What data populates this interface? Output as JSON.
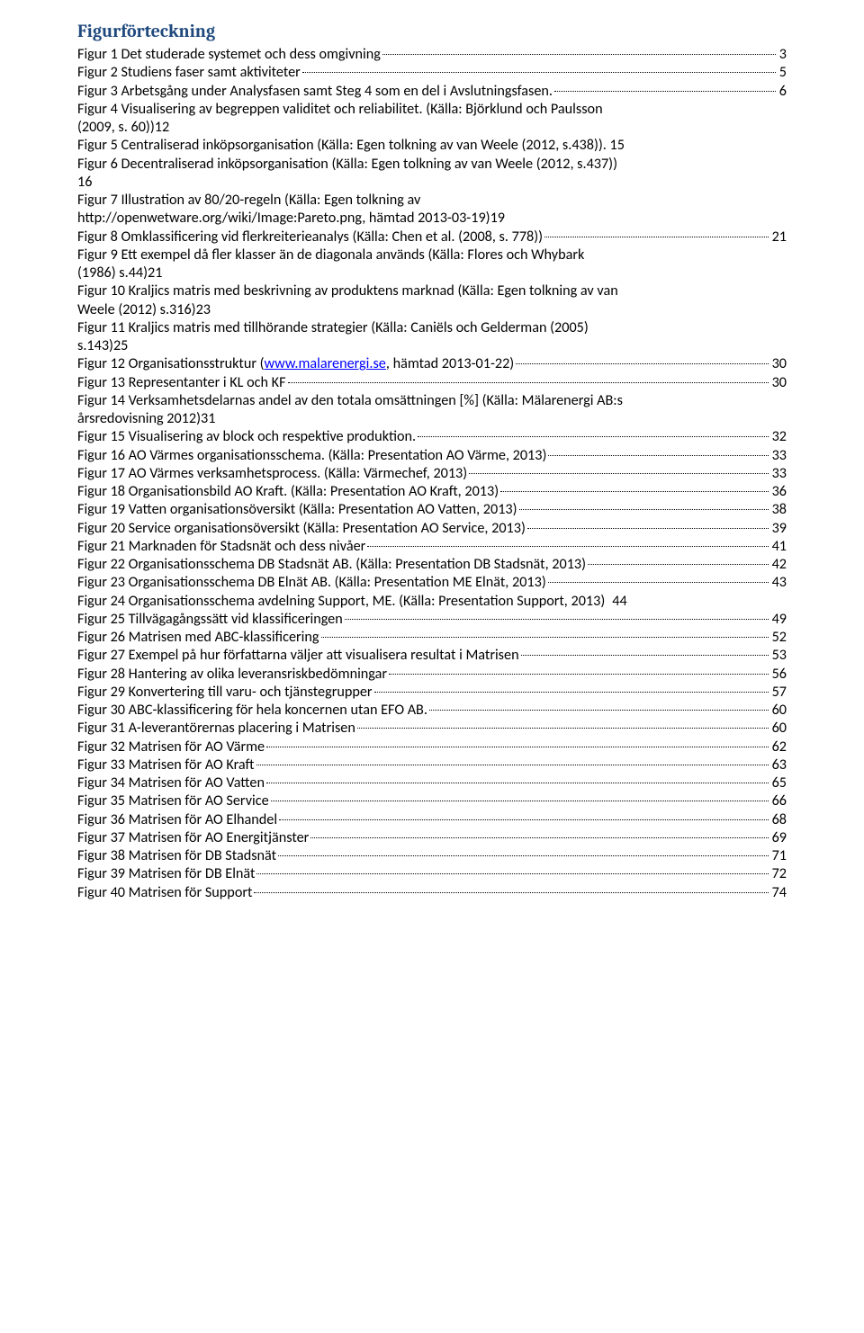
{
  "heading": "Figurförteckning",
  "colors": {
    "heading_color": "#1f497d",
    "text_color": "#000000",
    "link_color": "#0000ff",
    "background": "#ffffff",
    "leader_color": "#000000"
  },
  "typography": {
    "heading_font": "Cambria",
    "body_font": "Calibri",
    "heading_size_pt": 15,
    "body_size_pt": 12
  },
  "entries": [
    {
      "lines": [
        "Figur 1 Det studerade systemet och dess omgivning"
      ],
      "page": "3"
    },
    {
      "lines": [
        "Figur 2 Studiens faser samt aktiviteter"
      ],
      "page": "5"
    },
    {
      "lines": [
        "Figur 3 Arbetsgång under Analysfasen samt Steg 4 som en del i Avslutningsfasen."
      ],
      "page": "6"
    },
    {
      "lines": [
        "Figur 4 Visualisering av begreppen validitet och reliabilitet. (Källa: Björklund och Paulsson",
        "(2009, s. 60))"
      ],
      "page": "12"
    },
    {
      "lines": [
        "Figur 5 Centraliserad inköpsorganisation (Källa: Egen tolkning av van Weele (2012, s.438)). 15"
      ],
      "page": null
    },
    {
      "lines": [
        "Figur 6 Decentraliserad inköpsorganisation (Källa: Egen tolkning av van Weele (2012, s.437))",
        ""
      ],
      "page": "16"
    },
    {
      "lines": [
        "Figur 7 Illustration av 80/20-regeln (Källa: Egen tolkning av",
        "http://openwetware.org/wiki/Image:Pareto.png, hämtad 2013-03-19)"
      ],
      "page": "19"
    },
    {
      "lines": [
        "Figur 8 Omklassificering vid flerkreiterieanalys (Källa: Chen et al. (2008, s. 778))"
      ],
      "page": "21"
    },
    {
      "lines": [
        "Figur 9 Ett exempel då fler klasser än de diagonala används (Källa: Flores och Whybark",
        "(1986) s.44)"
      ],
      "page": "21"
    },
    {
      "lines": [
        "Figur 10 Kraljics matris med beskrivning av produktens marknad (Källa: Egen tolkning av van",
        "Weele (2012) s.316)"
      ],
      "page": "23"
    },
    {
      "lines": [
        "Figur 11 Kraljics matris med tillhörande strategier (Källa: Caniëls och Gelderman (2005)",
        "s.143)"
      ],
      "page": "25"
    },
    {
      "lines": [
        "Figur 12 Organisationsstruktur (",
        {
          "link": "www.malarenergi.se"
        },
        ", hämtad 2013-01-22)"
      ],
      "page": "30",
      "inline_link": true
    },
    {
      "lines": [
        "Figur 13 Representanter i KL och KF"
      ],
      "page": "30"
    },
    {
      "lines": [
        "Figur 14 Verksamhetsdelarnas andel av den totala omsättningen [%] (Källa: Mälarenergi AB:s",
        "årsredovisning 2012)"
      ],
      "page": "31"
    },
    {
      "lines": [
        "Figur 15 Visualisering av block och respektive produktion."
      ],
      "page": "32"
    },
    {
      "lines": [
        "Figur 16 AO Värmes organisationsschema. (Källa: Presentation AO Värme, 2013)"
      ],
      "page": "33"
    },
    {
      "lines": [
        "Figur 17 AO Värmes verksamhetsprocess. (Källa: Värmechef, 2013)"
      ],
      "page": "33"
    },
    {
      "lines": [
        "Figur 18 Organisationsbild AO Kraft. (Källa: Presentation AO Kraft, 2013)"
      ],
      "page": "36"
    },
    {
      "lines": [
        "Figur 19 Vatten organisationsöversikt (Källa: Presentation AO Vatten, 2013)"
      ],
      "page": "38"
    },
    {
      "lines": [
        "Figur 20  Service organisationsöversikt (Källa: Presentation AO Service, 2013)"
      ],
      "page": "39"
    },
    {
      "lines": [
        "Figur 21 Marknaden för Stadsnät och dess nivåer"
      ],
      "page": "41"
    },
    {
      "lines": [
        "Figur 22 Organisationsschema DB Stadsnät AB. (Källa: Presentation DB Stadsnät, 2013)"
      ],
      "page": "42"
    },
    {
      "lines": [
        "Figur 23 Organisationsschema DB Elnät AB. (Källa: Presentation ME Elnät, 2013)"
      ],
      "page": "43"
    },
    {
      "lines": [
        "Figur 24 Organisationsschema avdelning Support, ME. (Källa: Presentation Support, 2013)"
      ],
      "page": "44",
      "no_leader": true
    },
    {
      "lines": [
        "Figur 25 Tillvägagångssätt vid klassificeringen"
      ],
      "page": "49"
    },
    {
      "lines": [
        "Figur 26 Matrisen med ABC-klassificering"
      ],
      "page": "52"
    },
    {
      "lines": [
        "Figur 27 Exempel på hur författarna väljer att visualisera resultat i Matrisen"
      ],
      "page": "53"
    },
    {
      "lines": [
        "Figur 28 Hantering av olika leveransriskbedömningar "
      ],
      "page": "56"
    },
    {
      "lines": [
        "Figur 29 Konvertering till varu- och tjänstegrupper"
      ],
      "page": "57"
    },
    {
      "lines": [
        "Figur 30 ABC-klassificering för hela koncernen utan EFO AB. "
      ],
      "page": "60"
    },
    {
      "lines": [
        "Figur 31 A-leverantörernas placering i Matrisen "
      ],
      "page": "60"
    },
    {
      "lines": [
        "Figur 32 Matrisen för AO Värme "
      ],
      "page": "62"
    },
    {
      "lines": [
        "Figur 33 Matrisen för AO Kraft "
      ],
      "page": "63"
    },
    {
      "lines": [
        "Figur 34 Matrisen för AO Vatten "
      ],
      "page": "65"
    },
    {
      "lines": [
        "Figur 35 Matrisen för AO Service "
      ],
      "page": "66"
    },
    {
      "lines": [
        "Figur 36 Matrisen för AO Elhandel "
      ],
      "page": "68"
    },
    {
      "lines": [
        "Figur 37 Matrisen för AO Energitjänster "
      ],
      "page": "69"
    },
    {
      "lines": [
        "Figur 38 Matrisen för DB Stadsnät "
      ],
      "page": "71"
    },
    {
      "lines": [
        "Figur 39 Matrisen för DB Elnät "
      ],
      "page": "72"
    },
    {
      "lines": [
        "Figur 40 Matrisen för Support"
      ],
      "page": "74"
    }
  ]
}
